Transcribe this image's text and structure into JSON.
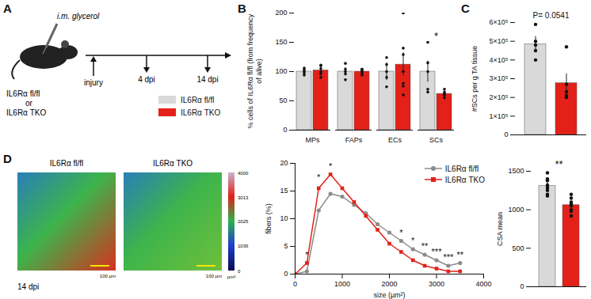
{
  "chart_data": [
    {
      "panel": "B",
      "type": "bar",
      "ylabel": "% cells of IL6Rα fl/fl (from frequency of alive)",
      "categories": [
        "MPs",
        "FAPs",
        "ECs",
        "SCs"
      ],
      "series": [
        {
          "name": "IL6Rα fl/fl",
          "color": "#d9d9d9",
          "values": [
            100,
            100,
            100,
            100
          ],
          "errors": [
            5,
            7,
            15,
            18
          ],
          "points": [
            [
              94,
              97,
              100,
              103,
              106
            ],
            [
              86,
              96,
              100,
              104,
              114
            ],
            [
              74,
              90,
              100,
              112,
              124
            ],
            [
              150,
              115,
              100,
              70,
              65
            ]
          ]
        },
        {
          "name": "IL6Rα TKO",
          "color": "#e32119",
          "values": [
            102,
            100,
            112,
            62
          ],
          "errors": [
            6,
            4,
            20,
            3
          ],
          "points": [
            [
              90,
              96,
              100,
              105,
              110,
              111
            ],
            [
              94,
              97,
              100,
              101,
              104,
              104
            ],
            [
              200,
              140,
              100,
              80,
              75,
              60,
              129
            ],
            [
              55,
              60,
              62,
              65,
              70,
              60
            ]
          ]
        }
      ],
      "ylim": [
        0,
        200
      ],
      "yticks": [
        0,
        50,
        100,
        150,
        200
      ],
      "annotations": [
        {
          "category": "SCs",
          "y": 160,
          "text": "*"
        }
      ]
    },
    {
      "panel": "C",
      "type": "bar",
      "ylabel": "#SCs per g TA tissue",
      "categories": [
        null,
        null
      ],
      "values": [
        484000,
        276000
      ],
      "errors": [
        42000,
        50000
      ],
      "colors": [
        "#d9d9d9",
        "#e32119"
      ],
      "points": [
        [
          590000,
          500000,
          480000,
          450000,
          400000
        ],
        [
          470000,
          270000,
          230000,
          200000,
          210000
        ]
      ],
      "ylim": [
        0,
        600000
      ],
      "yticks": [
        0,
        {
          "value": 100000,
          "label": "1×10⁵"
        },
        {
          "value": 200000,
          "label": "2×10⁵"
        },
        {
          "value": 300000,
          "label": "3×10⁵"
        },
        {
          "value": 400000,
          "label": "4×10⁵"
        },
        {
          "value": 500000,
          "label": "5×10⁵"
        },
        {
          "value": 600000,
          "label": "6×10⁵"
        }
      ],
      "tick_labels": "y",
      "annotations": [
        {
          "y": 600000,
          "text": "P= 0.0541"
        }
      ]
    },
    {
      "panel": "D",
      "type": "line",
      "xlabel": "size (µm²)",
      "ylabel": "fibers (%)",
      "x": [
        0,
        250,
        500,
        750,
        1000,
        1250,
        1500,
        1750,
        2000,
        2250,
        2500,
        2750,
        3000,
        3250,
        3500
      ],
      "series": [
        {
          "name": "IL6Rα fl/fl",
          "color": "#8c8c8c",
          "marker": "circle",
          "values": [
            0,
            0.5,
            11.5,
            14.5,
            14,
            12.5,
            11,
            9,
            7.5,
            6,
            4.5,
            3.5,
            2.5,
            1.5,
            2
          ]
        },
        {
          "name": "IL6Rα TKO",
          "color": "#e32119",
          "marker": "square",
          "values": [
            0,
            2,
            15.5,
            18,
            15.5,
            13,
            10.5,
            8,
            5.5,
            4,
            2.5,
            1.5,
            1,
            0.5,
            0.5
          ]
        }
      ],
      "xlim": [
        0,
        4000
      ],
      "xticks": [
        0,
        1000,
        2000,
        3000,
        4000
      ],
      "ylim": [
        0,
        20
      ],
      "yticks": [
        0,
        5,
        10,
        15,
        20
      ],
      "legend": "top-right",
      "annotations": [
        {
          "x": 250,
          "y": 3.5,
          "text": "*"
        },
        {
          "x": 500,
          "y": 17.5,
          "text": "*"
        },
        {
          "x": 750,
          "y": 19.5,
          "text": "*"
        },
        {
          "x": 2250,
          "y": 7.5,
          "text": "*"
        },
        {
          "x": 2500,
          "y": 6,
          "text": "*"
        },
        {
          "x": 2750,
          "y": 5,
          "text": "**"
        },
        {
          "x": 3000,
          "y": 4,
          "text": "***"
        },
        {
          "x": 3250,
          "y": 3,
          "text": "***"
        },
        {
          "x": 3500,
          "y": 3.5,
          "text": "**"
        }
      ]
    },
    {
      "type": "bar",
      "ylabel": "CSA mean",
      "categories": [
        null,
        null
      ],
      "values": [
        1310,
        1060
      ],
      "errors": [
        55,
        40
      ],
      "colors": [
        "#d9d9d9",
        "#e32119"
      ],
      "points": [
        [
          1480,
          1400,
          1380,
          1320,
          1300,
          1280,
          1250,
          1200,
          1180
        ],
        [
          1200,
          1150,
          1100,
          1080,
          1050,
          1000,
          980,
          920
        ]
      ],
      "ylim": [
        0,
        1500
      ],
      "yticks": [
        0,
        500,
        1000,
        1500
      ],
      "tick_labels": "y",
      "annotations": [
        {
          "y": 1500,
          "text": "**"
        }
      ]
    }
  ],
  "schematic": {
    "panel": "A",
    "treatment": "i.m. glycerol",
    "groups": [
      "IL6Rα fl/fl",
      "or",
      "IL6Rα TKO"
    ],
    "timeline": [
      "injury",
      "4 dpi",
      "14 dpi"
    ]
  },
  "legend": [
    {
      "name": "IL6Rα fl/fl",
      "color": "#d9d9d9"
    },
    {
      "name": "IL6Rα TKO",
      "color": "#e32119"
    }
  ],
  "images": {
    "titles": [
      "IL6Rα fl/fl",
      "IL6Rα TKO"
    ],
    "scale_bar": "100 µm",
    "caption": "14 dpi",
    "colorbar": {
      "range": [
        0,
        4000
      ],
      "ticks": [
        0,
        1036,
        2025,
        3013,
        4000
      ],
      "label": "µm²"
    }
  }
}
